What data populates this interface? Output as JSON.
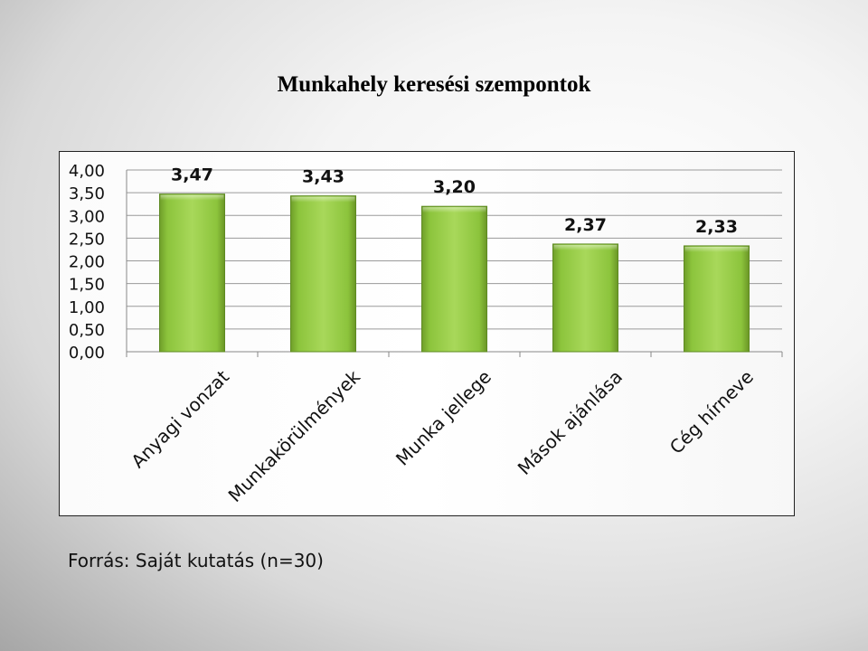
{
  "title": "Munkahely keresési szempontok",
  "source": "Forrás: Saját kutatás (n=30)",
  "chart_data": {
    "type": "bar",
    "categories": [
      "Anyagi vonzat",
      "Munkakörülmények",
      "Munka jellege",
      "Mások ajánlása",
      "Cég hírneve"
    ],
    "values": [
      3.47,
      3.43,
      3.2,
      2.37,
      2.33
    ],
    "data_labels": [
      "3,47",
      "3,43",
      "3,20",
      "2,37",
      "2,33"
    ],
    "ylim": [
      0,
      4
    ],
    "ytick_values": [
      0,
      0.5,
      1,
      1.5,
      2,
      2.5,
      3,
      3.5,
      4
    ],
    "ytick_labels": [
      "0,00",
      "0,50",
      "1,00",
      "1,50",
      "2,00",
      "2,50",
      "3,00",
      "3,50",
      "4,00"
    ],
    "title": "Munkahely keresési szempontok",
    "xlabel": "",
    "ylabel": "",
    "grid": true,
    "legend": false,
    "bar_color": "#8cc43c"
  }
}
